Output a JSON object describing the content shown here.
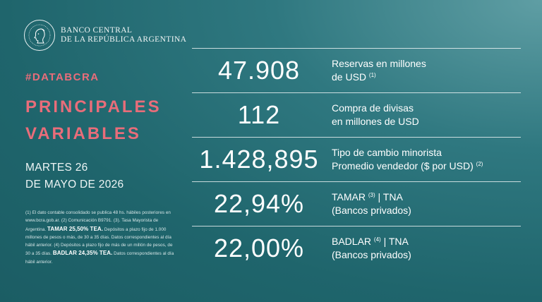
{
  "header": {
    "bank_line1": "BANCO CENTRAL",
    "bank_line2": "DE LA REPÚBLICA ARGENTINA",
    "logo_icon": "republic-profile-seal-icon"
  },
  "hashtag": "#DATABCRA",
  "title_line1": "PRINCIPALES",
  "title_line2": "VARIABLES",
  "date_line1": "MARTES 26",
  "date_line2": "DE MAYO DE 2026",
  "footnote": {
    "p1": "(1) El dato contable consolidado se publica 48 hs. hábiles posteriores en www.bcra.gob.ar. (2) Comunicación B9791. (3). Tasa Mayorista de Argentina.",
    "tamar_bold": "TAMAR 25,50% TEA.",
    "p2": "Depósitos a plazo fijo de 1.000 millones de pesos o más, de 30 a 35 días. Datos correspondientes al día hábil anterior. (4) Depósitos a plazo fijo de más de un millón de pesos, de 30 a 35 días.",
    "badlar_bold": "BADLAR 24,35% TEA.",
    "p3": "Datos correspondientes al día hábil anterior."
  },
  "indicators": [
    {
      "value": "47.908",
      "line1": "Reservas en millones",
      "line2": "de USD",
      "line2_sup": "(1)"
    },
    {
      "value": "112",
      "line1": "Compra de divisas",
      "line2": "en millones de USD",
      "line2_sup": ""
    },
    {
      "value": "1.428,895",
      "line1": "Tipo de cambio minorista",
      "line2": "Promedio vendedor ($ por USD)",
      "line2_sup": "(2)"
    },
    {
      "value": "22,94%",
      "line1_pre": "TAMAR",
      "line1_sup": "(3)",
      "line1_post": "| TNA",
      "line2": "(Bancos privados)"
    },
    {
      "value": "22,00%",
      "line1_pre": "BADLAR",
      "line1_sup": "(4)",
      "line1_post": "| TNA",
      "line2": "(Bancos privados)"
    }
  ],
  "colors": {
    "accent": "#e96d7a",
    "background": "#1f656c",
    "text": "#ffffff"
  }
}
